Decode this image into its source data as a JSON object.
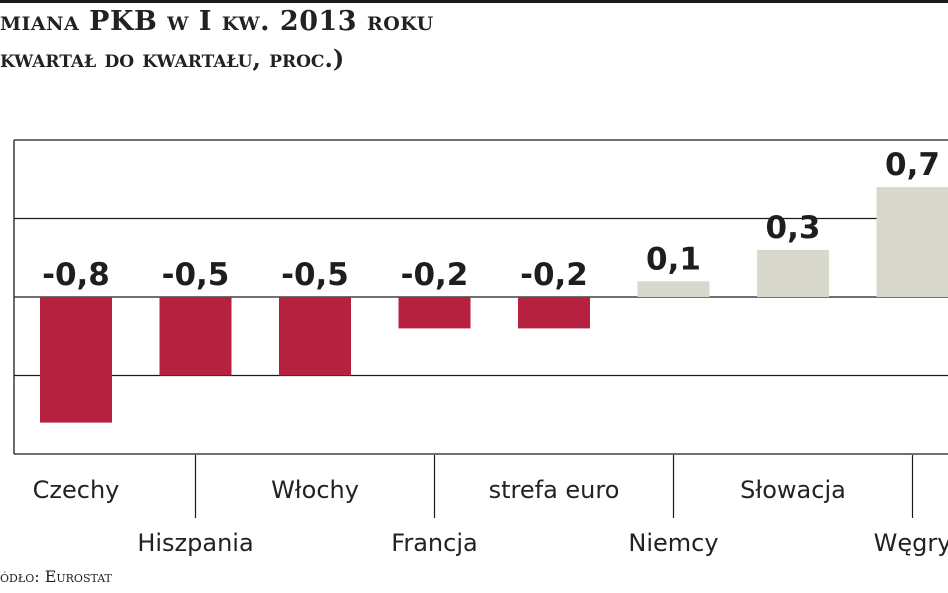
{
  "header": {
    "title": "miana PKB w I kw. 2013 roku",
    "subtitle": "kwartał do kwartału, proc.)"
  },
  "footer": {
    "source": "ódło: Eurostat"
  },
  "colors": {
    "negative": "#b5213e",
    "positive": "#d9d8cc",
    "grid": "#1a1a1a"
  },
  "chart_data": {
    "type": "bar",
    "title": "miana PKB w I kw. 2013 roku",
    "subtitle": "kwartał do kwartału, proc.)",
    "categories": [
      "Czechy",
      "Hiszpania",
      "Włochy",
      "Francja",
      "strefa euro",
      "Niemcy",
      "Słowacja",
      "Węgry"
    ],
    "values": [
      -0.8,
      -0.5,
      -0.5,
      -0.2,
      -0.2,
      0.1,
      0.3,
      0.7
    ],
    "value_labels": [
      "-0,8",
      "-0,5",
      "-0,5",
      "-0,2",
      "-0,2",
      "0,1",
      "0,3",
      "0,7"
    ],
    "ylim": [
      -1,
      1
    ],
    "grid": true,
    "legend": "none",
    "xlabel": "",
    "ylabel": ""
  }
}
